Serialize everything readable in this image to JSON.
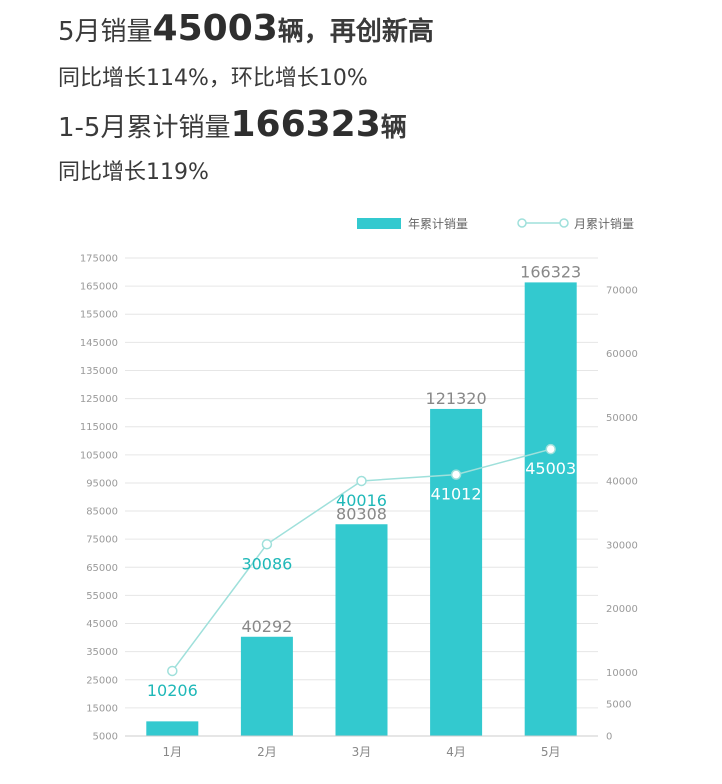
{
  "headline": {
    "line1": {
      "prefix": "5月销量",
      "number": "45003",
      "unit": "辆",
      "suffix": "，再创新高"
    },
    "line2": "同比增长114%，环比增长10%",
    "line3": {
      "prefix": "1-5月累计销量",
      "number": "166323",
      "unit": "辆"
    },
    "line4": "同比增长119%"
  },
  "chart_data": {
    "type": "bar",
    "categories": [
      "1月",
      "2月",
      "3月",
      "4月",
      "5月"
    ],
    "series": [
      {
        "name": "年累计销量",
        "type": "bar",
        "axis": "left",
        "values": [
          10206,
          40292,
          80308,
          121320,
          166323
        ],
        "labels": [
          "",
          "40292",
          "80308",
          "121320",
          "166323"
        ]
      },
      {
        "name": "月累计销量",
        "type": "line",
        "axis": "right",
        "values": [
          10206,
          30086,
          40016,
          41012,
          45003
        ],
        "labels": [
          "10206",
          "30086",
          "40016",
          "41012",
          "45003"
        ]
      }
    ],
    "y_left": {
      "min": 5000,
      "max": 175000,
      "ticks": [
        "175000",
        "165000",
        "155000",
        "145000",
        "135000",
        "125000",
        "115000",
        "105000",
        "95000",
        "85000",
        "75000",
        "65000",
        "55000",
        "45000",
        "35000",
        "25000",
        "15000",
        "5000"
      ]
    },
    "y_right": {
      "min": 0,
      "max": 75000,
      "ticks": [
        "70000",
        "60000",
        "50000",
        "40000",
        "30000",
        "20000",
        "10000",
        "5000",
        "0"
      ]
    },
    "grid": true,
    "legend": "top-right",
    "colors": {
      "bar": "#33C9CF",
      "line": "#9FE0DB",
      "line_label": "#1FB8B8",
      "grid": "#e6e6e6"
    }
  }
}
